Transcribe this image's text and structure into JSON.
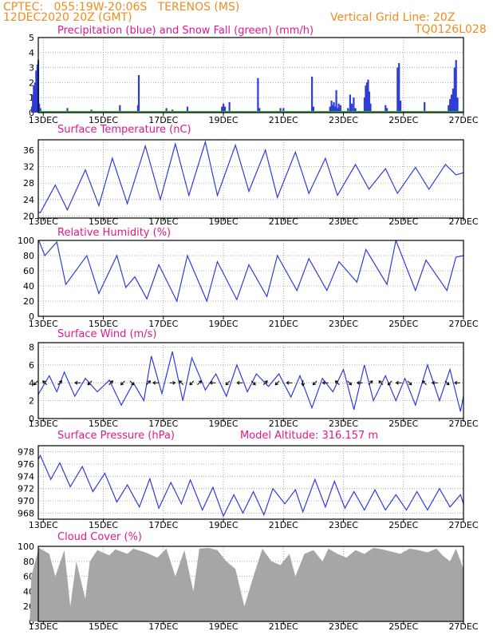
{
  "header": {
    "line1": "CPTEC:   055:19W-20:06S   TERENOS (MS)",
    "line2": "12DEC2020 20Z (GMT)",
    "grid_note": "Vertical Grid Line: 20Z",
    "run_id": "TQ0126L028"
  },
  "x_axis": {
    "start_day": 12.833,
    "end_day": 27.0,
    "tick_days": [
      13,
      15,
      17,
      19,
      21,
      23,
      25,
      27
    ],
    "tick_labels": [
      "13DEC",
      "15DEC",
      "17DEC",
      "19DEC",
      "21DEC",
      "23DEC",
      "25DEC",
      "27DEC"
    ]
  },
  "chart_data": [
    {
      "type": "bar",
      "title": "Precipitation (blue) and Snow Fall (green) (mm/h)",
      "ylim": [
        0,
        5
      ],
      "yticks": [
        0,
        1,
        2,
        3,
        4,
        5
      ],
      "colors": {
        "precip": "#2f3dd6",
        "snow": "#2fb02f"
      },
      "series": [
        {
          "name": "Precipitation",
          "points": [
            [
              12.62,
              0.4
            ],
            [
              12.65,
              1.2
            ],
            [
              12.68,
              1.8
            ],
            [
              12.7,
              1.0
            ],
            [
              12.72,
              2.0
            ],
            [
              12.74,
              1.1
            ],
            [
              12.76,
              2.8
            ],
            [
              12.78,
              1.5
            ],
            [
              12.8,
              3.2
            ],
            [
              12.83,
              3.5
            ],
            [
              12.86,
              0.6
            ],
            [
              12.9,
              0.3
            ],
            [
              13.8,
              0.3
            ],
            [
              14.6,
              0.2
            ],
            [
              15.3,
              0.1
            ],
            [
              15.55,
              0.5
            ],
            [
              16.15,
              0.5
            ],
            [
              16.18,
              2.5
            ],
            [
              17.1,
              0.3
            ],
            [
              17.3,
              0.2
            ],
            [
              17.8,
              0.4
            ],
            [
              18.3,
              0.1
            ],
            [
              18.95,
              0.4
            ],
            [
              19.0,
              0.6
            ],
            [
              19.05,
              0.4
            ],
            [
              19.2,
              0.7
            ],
            [
              20.15,
              2.3
            ],
            [
              20.2,
              0.3
            ],
            [
              20.9,
              0.3
            ],
            [
              21.0,
              0.3
            ],
            [
              21.95,
              2.4
            ],
            [
              22.0,
              0.4
            ],
            [
              22.55,
              0.4
            ],
            [
              22.6,
              0.8
            ],
            [
              22.64,
              0.5
            ],
            [
              22.68,
              0.7
            ],
            [
              22.72,
              0.4
            ],
            [
              22.76,
              1.5
            ],
            [
              22.8,
              0.3
            ],
            [
              22.84,
              0.6
            ],
            [
              22.88,
              0.3
            ],
            [
              22.9,
              0.5
            ],
            [
              23.15,
              0.3
            ],
            [
              23.22,
              1.2
            ],
            [
              23.28,
              0.6
            ],
            [
              23.34,
              1.0
            ],
            [
              23.4,
              0.3
            ],
            [
              23.7,
              1.0
            ],
            [
              23.74,
              1.8
            ],
            [
              23.78,
              2.0
            ],
            [
              23.82,
              2.2
            ],
            [
              23.86,
              1.4
            ],
            [
              23.9,
              0.6
            ],
            [
              24.4,
              0.5
            ],
            [
              24.45,
              0.3
            ],
            [
              24.8,
              3.0
            ],
            [
              24.85,
              3.3
            ],
            [
              24.9,
              0.8
            ],
            [
              25.7,
              0.7
            ],
            [
              26.5,
              0.5
            ],
            [
              26.55,
              0.9
            ],
            [
              26.6,
              1.2
            ],
            [
              26.65,
              1.6
            ],
            [
              26.7,
              3.0
            ],
            [
              26.75,
              3.5
            ],
            [
              26.8,
              1.0
            ]
          ]
        },
        {
          "name": "Snow Fall",
          "values": [
            0
          ]
        }
      ]
    },
    {
      "type": "line",
      "title": "Surface Temperature (nC)",
      "ylim": [
        19.5,
        38.5
      ],
      "yticks": [
        20,
        24,
        28,
        32,
        36
      ],
      "color": "#2f3dd6",
      "x": [
        12.55,
        12.8,
        12.9,
        13.4,
        13.8,
        14.4,
        14.85,
        15.3,
        15.8,
        16.4,
        16.9,
        17.4,
        17.85,
        18.4,
        18.8,
        19.4,
        19.85,
        20.4,
        20.8,
        21.4,
        21.85,
        22.4,
        22.8,
        23.4,
        23.85,
        24.4,
        24.8,
        25.4,
        25.85,
        26.4,
        26.75,
        27.0
      ],
      "y": [
        24.5,
        21.0,
        20.8,
        27.5,
        21.5,
        31.2,
        22.5,
        34.0,
        23.0,
        37.0,
        24.0,
        37.5,
        25.0,
        38.0,
        25.0,
        37.2,
        26.0,
        36.0,
        24.5,
        35.5,
        25.5,
        34.0,
        25.0,
        32.5,
        26.5,
        31.5,
        25.5,
        31.8,
        26.5,
        32.5,
        30.0,
        30.5
      ]
    },
    {
      "type": "line",
      "title": "Relative Humidity (%)",
      "ylim": [
        0,
        100
      ],
      "yticks": [
        0,
        20,
        40,
        60,
        80,
        100
      ],
      "color": "#2f3dd6",
      "x": [
        12.55,
        12.85,
        13.05,
        13.45,
        13.75,
        14.45,
        14.85,
        15.45,
        15.75,
        16.05,
        16.45,
        16.85,
        17.45,
        17.8,
        18.45,
        18.8,
        19.45,
        19.85,
        20.45,
        20.8,
        21.45,
        21.85,
        22.45,
        22.85,
        23.45,
        23.75,
        24.45,
        24.75,
        25.4,
        25.75,
        26.45,
        26.75,
        27.0
      ],
      "y": [
        65,
        100,
        80,
        98,
        42,
        80,
        30,
        80,
        38,
        52,
        23,
        68,
        20,
        80,
        20,
        72,
        22,
        68,
        26,
        80,
        34,
        76,
        34,
        72,
        45,
        88,
        42,
        100,
        34,
        74,
        34,
        78,
        80
      ]
    },
    {
      "type": "line",
      "title": "Surface Wind (m/s)",
      "ylim": [
        0,
        8.5
      ],
      "yticks": [
        0,
        2,
        4,
        6,
        8
      ],
      "color": "#2f3dd6",
      "x": [
        12.55,
        12.85,
        13.2,
        13.45,
        13.7,
        14.05,
        14.4,
        14.8,
        15.2,
        15.6,
        16.0,
        16.35,
        16.6,
        16.95,
        17.3,
        17.65,
        17.95,
        18.4,
        18.75,
        19.1,
        19.45,
        19.8,
        20.1,
        20.5,
        20.85,
        21.25,
        21.55,
        21.95,
        22.3,
        22.65,
        23.0,
        23.35,
        23.7,
        24.0,
        24.4,
        24.75,
        25.05,
        25.4,
        25.8,
        26.2,
        26.55,
        26.9,
        27.0
      ],
      "y": [
        5.2,
        2.8,
        4.8,
        3.0,
        5.2,
        2.5,
        4.5,
        3.0,
        4.3,
        1.5,
        4.0,
        2.0,
        7.0,
        2.8,
        7.5,
        2.0,
        6.8,
        3.2,
        5.0,
        2.5,
        6.0,
        3.0,
        5.0,
        3.6,
        5.0,
        2.4,
        4.8,
        1.2,
        4.5,
        3.0,
        5.5,
        1.0,
        6.0,
        2.0,
        4.8,
        2.0,
        4.5,
        1.5,
        6.0,
        2.0,
        5.5,
        0.8,
        2.5
      ],
      "arrows": [
        {
          "day": 12.75,
          "dir": "SW"
        },
        {
          "day": 13.05,
          "dir": "NW"
        },
        {
          "day": 13.55,
          "dir": "NE"
        },
        {
          "day": 14.15,
          "dir": "W"
        },
        {
          "day": 14.55,
          "dir": "SW"
        },
        {
          "day": 15.25,
          "dir": "NE"
        },
        {
          "day": 15.65,
          "dir": "SW"
        },
        {
          "day": 15.95,
          "dir": "SE"
        },
        {
          "day": 16.5,
          "dir": "NE"
        },
        {
          "day": 16.75,
          "dir": "W"
        },
        {
          "day": 17.3,
          "dir": "E"
        },
        {
          "day": 17.6,
          "dir": "NW"
        },
        {
          "day": 17.95,
          "dir": "SW"
        },
        {
          "day": 18.2,
          "dir": "NE"
        },
        {
          "day": 18.65,
          "dir": "W"
        },
        {
          "day": 19.15,
          "dir": "SW"
        },
        {
          "day": 19.55,
          "dir": "W"
        },
        {
          "day": 20.0,
          "dir": "SE"
        },
        {
          "day": 20.4,
          "dir": "NE"
        },
        {
          "day": 20.8,
          "dir": "SW"
        },
        {
          "day": 21.2,
          "dir": "W"
        },
        {
          "day": 21.65,
          "dir": "S"
        },
        {
          "day": 22.05,
          "dir": "SW"
        },
        {
          "day": 22.4,
          "dir": "W"
        },
        {
          "day": 22.8,
          "dir": "NW"
        },
        {
          "day": 23.2,
          "dir": "SE"
        },
        {
          "day": 23.55,
          "dir": "W"
        },
        {
          "day": 23.9,
          "dir": "NE"
        },
        {
          "day": 24.25,
          "dir": "NW"
        },
        {
          "day": 24.55,
          "dir": "SW"
        },
        {
          "day": 24.85,
          "dir": "W"
        },
        {
          "day": 25.2,
          "dir": "SE"
        },
        {
          "day": 25.7,
          "dir": "NW"
        },
        {
          "day": 26.05,
          "dir": "W"
        },
        {
          "day": 26.45,
          "dir": "SE"
        },
        {
          "day": 26.8,
          "dir": "W"
        }
      ]
    },
    {
      "type": "line",
      "title": "Surface Pressure (hPa)",
      "annotation": "Model Altitude: 316.157 m",
      "ylim": [
        967,
        979
      ],
      "yticks": [
        968,
        970,
        972,
        974,
        976,
        978
      ],
      "color": "#2f3dd6",
      "x": [
        12.55,
        12.9,
        13.25,
        13.55,
        13.9,
        14.3,
        14.65,
        15.05,
        15.45,
        15.8,
        16.2,
        16.55,
        16.85,
        17.25,
        17.6,
        17.9,
        18.3,
        18.65,
        19.0,
        19.35,
        19.65,
        20.0,
        20.35,
        20.65,
        21.05,
        21.4,
        21.65,
        22.05,
        22.4,
        22.7,
        23.05,
        23.35,
        23.7,
        24.05,
        24.4,
        24.75,
        25.1,
        25.45,
        25.8,
        26.2,
        26.55,
        26.9,
        27.0
      ],
      "y": [
        974.2,
        977.4,
        973.5,
        976.2,
        972.3,
        975.6,
        971.5,
        974.5,
        969.8,
        972.6,
        969.0,
        973.6,
        968.8,
        973.0,
        969.5,
        973.4,
        968.5,
        972.2,
        967.5,
        971.0,
        968.0,
        971.5,
        967.7,
        972.0,
        969.5,
        971.8,
        968.2,
        973.5,
        969.0,
        973.2,
        968.8,
        971.5,
        968.5,
        971.8,
        968.5,
        971.0,
        968.5,
        971.5,
        968.5,
        972.0,
        969.0,
        971.0,
        969.5
      ]
    },
    {
      "type": "area",
      "title": "Cloud Cover (%)",
      "ylim": [
        0,
        100
      ],
      "yticks": [
        0,
        20,
        40,
        60,
        80,
        100
      ],
      "color": "#a6a6a6",
      "x": [
        12.55,
        12.6,
        12.85,
        13.2,
        13.4,
        13.7,
        13.9,
        14.1,
        14.4,
        14.55,
        14.8,
        15.2,
        15.4,
        15.8,
        16.0,
        16.4,
        16.8,
        17.1,
        17.4,
        17.7,
        18.0,
        18.2,
        18.5,
        18.8,
        19.1,
        19.4,
        19.7,
        20.0,
        20.3,
        20.6,
        20.9,
        21.2,
        21.4,
        21.7,
        22.0,
        22.3,
        22.5,
        22.8,
        23.1,
        23.4,
        23.7,
        24.0,
        24.3,
        24.6,
        24.9,
        25.2,
        25.5,
        25.8,
        26.1,
        26.3,
        26.55,
        26.75,
        27.0
      ],
      "y": [
        0,
        60,
        98,
        90,
        60,
        95,
        20,
        80,
        30,
        80,
        95,
        88,
        96,
        90,
        97,
        92,
        85,
        97,
        60,
        95,
        40,
        97,
        98,
        95,
        80,
        70,
        20,
        60,
        97,
        80,
        75,
        90,
        60,
        90,
        95,
        80,
        97,
        90,
        85,
        95,
        90,
        98,
        96,
        93,
        90,
        97,
        95,
        92,
        97,
        88,
        80,
        97,
        70
      ]
    }
  ]
}
